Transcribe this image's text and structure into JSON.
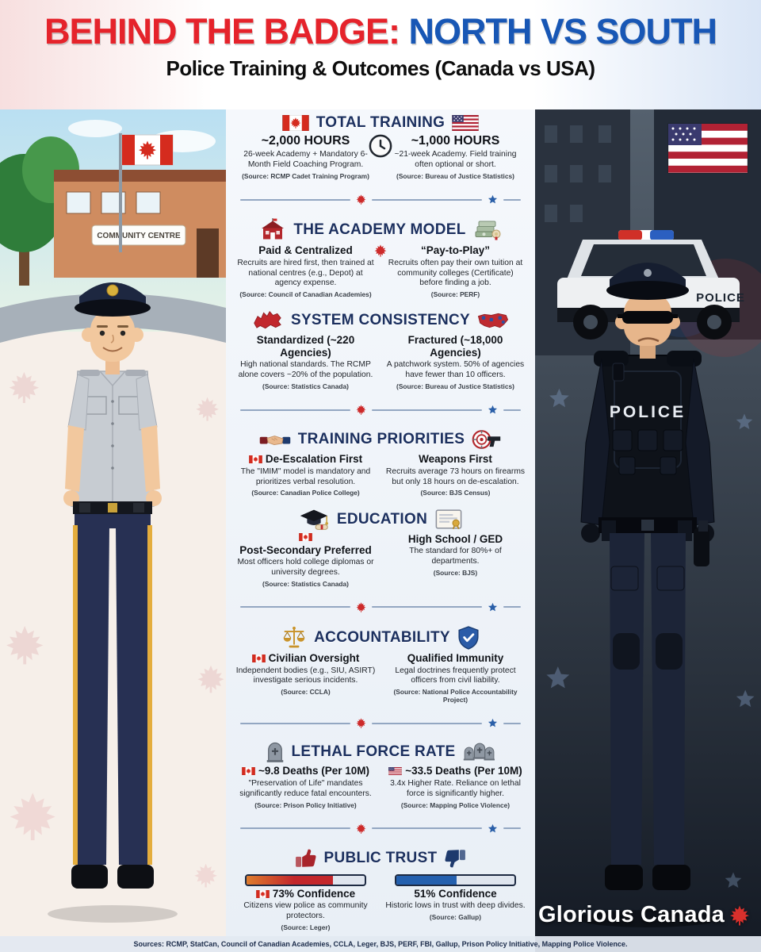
{
  "header": {
    "title_left": "BEHIND THE BADGE:",
    "title_right": "NORTH VS SOUTH",
    "subtitle": "Police Training & Outcomes (Canada vs USA)"
  },
  "scene": {
    "left_sign": "COMMUNITY CENTRE",
    "right_car_label": "POLICE",
    "right_vest_label": "POLICE"
  },
  "sections": [
    {
      "title": "TOTAL TRAINING",
      "canada": {
        "heading": "~2,000 HOURS",
        "body": "26-week Academy + Mandatory 6-Month Field Coaching Program.",
        "source": "(Source: RCMP Cadet Training Program)"
      },
      "usa": {
        "heading": "~1,000 HOURS",
        "body": "~21-week Academy. Field training often optional or short.",
        "source": "(Source: Bureau of Justice Statistics)"
      }
    },
    {
      "title": "THE ACADEMY MODEL",
      "canada": {
        "heading": "Paid & Centralized",
        "body": "Recruits are hired first, then trained at national centres (e.g., Depot) at agency expense.",
        "source": "(Source: Council of Canadian Academies)"
      },
      "usa": {
        "heading": "“Pay-to-Play”",
        "body": "Recruits often pay their own tuition at community colleges (Certificate) before finding a job.",
        "source": "(Source: PERF)"
      }
    },
    {
      "title": "SYSTEM CONSISTENCY",
      "canada": {
        "heading": "Standardized (~220 Agencies)",
        "body": "High national standards. The RCMP alone covers ~20% of the population.",
        "source": "(Source: Statistics Canada)"
      },
      "usa": {
        "heading": "Fractured (~18,000 Agencies)",
        "body": "A patchwork system. 50% of agencies have fewer than 10 officers.",
        "source": "(Source: Bureau of Justice Statistics)"
      }
    },
    {
      "title": "TRAINING PRIORITIES",
      "canada": {
        "heading": "De-Escalation First",
        "body": "The \"IMIM\" model is mandatory and prioritizes verbal resolution.",
        "source": "(Source: Canadian Police College)"
      },
      "usa": {
        "heading": "Weapons First",
        "body": "Recruits average 73 hours on firearms but only 18 hours on de-escalation.",
        "source": "(Source: BJS Census)"
      }
    },
    {
      "title": "EDUCATION",
      "canada": {
        "heading": "Post-Secondary Preferred",
        "body": "Most officers hold college diplomas or university degrees.",
        "source": "(Source: Statistics Canada)"
      },
      "usa": {
        "heading": "High School / GED",
        "body": "The standard for 80%+ of departments.",
        "source": "(Source: BJS)"
      }
    },
    {
      "title": "ACCOUNTABILITY",
      "canada": {
        "heading": "Civilian Oversight",
        "body": "Independent bodies (e.g., SIU, ASIRT) investigate serious incidents.",
        "source": "(Source: CCLA)"
      },
      "usa": {
        "heading": "Qualified Immunity",
        "body": "Legal doctrines frequently protect officers from civil liability.",
        "source": "(Source: National Police Accountability Project)"
      }
    },
    {
      "title": "LETHAL FORCE RATE",
      "canada": {
        "heading": "~9.8 Deaths (Per 10M)",
        "body": "\"Preservation of Life\" mandates significantly reduce fatal encounters.",
        "source": "(Source: Prison Policy Initiative)"
      },
      "usa": {
        "heading": "~33.5 Deaths (Per 10M)",
        "body": "3.4x Higher Rate. Reliance on lethal force is significantly higher.",
        "source": "(Source: Mapping Police Violence)"
      }
    },
    {
      "title": "PUBLIC TRUST",
      "canada": {
        "heading": "73% Confidence",
        "body": "Citizens view police as community protectors.",
        "source": "(Source: Leger)",
        "bar_percent": 73
      },
      "usa": {
        "heading": "51% Confidence",
        "body": "Historic lows in trust with deep divides.",
        "source": "(Source: Gallup)",
        "bar_percent": 51
      }
    }
  ],
  "footer": {
    "sources": "Sources: RCMP, StatCan, Council of Canadian Academies, CCLA, Leger, BJS, PERF, FBI, Gallup, Prison Policy Initiative, Mapping Police Violence."
  },
  "brand": {
    "name": "Glorious Canada"
  },
  "icons": [
    "canada-flag-icon",
    "usa-flag-icon",
    "clock-icon",
    "school-icon",
    "money-icon",
    "canada-map-icon",
    "usa-map-icon",
    "handshake-icon",
    "target-gun-icon",
    "graduation-cap-icon",
    "certificate-icon",
    "scales-icon",
    "shield-icon",
    "tombstone-icon",
    "tombstones-icon",
    "thumbs-up-icon",
    "thumbs-down-icon",
    "maple-leaf-icon",
    "star-icon"
  ],
  "colors": {
    "title_red": "#e5232b",
    "title_blue": "#1857b5",
    "navy": "#1b2f5e",
    "canada_red": "#cd2a2a",
    "us_blue": "#2a5fa8",
    "bar_red": "#c3272b",
    "bar_blue": "#2460ae"
  }
}
